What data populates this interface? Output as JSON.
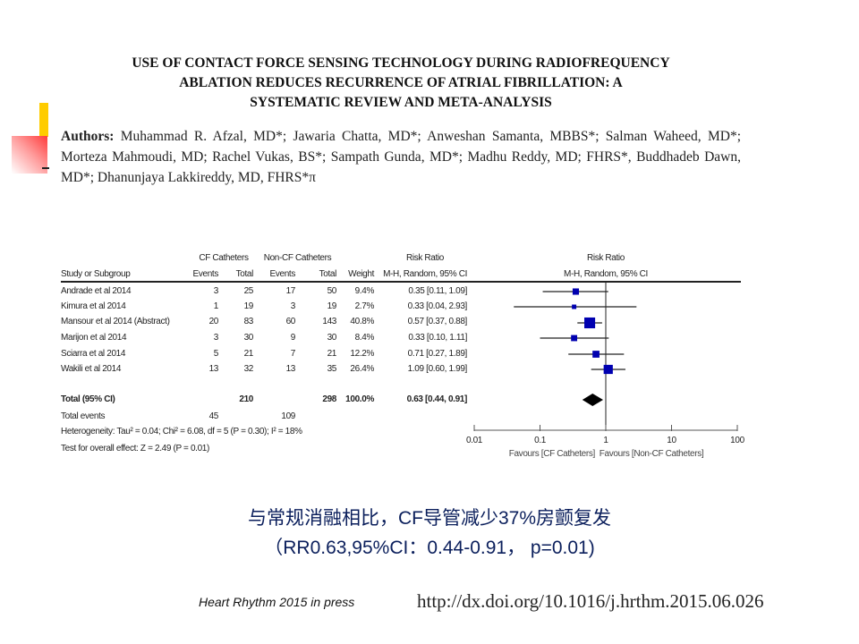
{
  "title": [
    "USE OF CONTACT FORCE SENSING TECHNOLOGY DURING RADIOFREQUENCY",
    "ABLATION REDUCES RECURRENCE OF ATRIAL FIBRILLATION: A",
    "SYSTEMATIC REVIEW AND META-ANALYSIS"
  ],
  "authors_label": "Authors:",
  "authors": "Muhammad R. Afzal, MD*; Jawaria Chatta, MD*; Anweshan Samanta, MBBS*; Salman Waheed, MD*; Morteza Mahmoudi, MD; Rachel Vukas, BS*; Sampath Gunda, MD*; Madhu Reddy, MD; FHRS*, Buddhadeb Dawn, MD*; Dhanunjaya Lakkireddy, MD, FHRS*π",
  "colors": {
    "accent_yellow": "#ffcc00",
    "accent_red": "#ff3b3b",
    "marker": "#0000b0",
    "summary_text": "#0b1f5c"
  },
  "chart_data": {
    "type": "forest",
    "headers": {
      "group1": "CF Catheters",
      "group2": "Non-CF Catheters",
      "rr_top": "Risk Ratio",
      "study": "Study or Subgroup",
      "events": "Events",
      "total": "Total",
      "weight": "Weight",
      "rr_method": "M-H, Random, 95% CI",
      "plot_top": "Risk Ratio",
      "plot_method": "M-H, Random, 95% CI"
    },
    "studies": [
      {
        "name": "Andrade et al 2014",
        "cf_events": "3",
        "cf_total": "25",
        "ncf_events": "17",
        "ncf_total": "50",
        "weight": "9.4%",
        "rr_text": "0.35 [0.11, 1.09]",
        "rr": 0.35,
        "lo": 0.11,
        "hi": 1.09,
        "w": 9.4
      },
      {
        "name": "Kimura et al 2014",
        "cf_events": "1",
        "cf_total": "19",
        "ncf_events": "3",
        "ncf_total": "19",
        "weight": "2.7%",
        "rr_text": "0.33 [0.04, 2.93]",
        "rr": 0.33,
        "lo": 0.04,
        "hi": 2.93,
        "w": 2.7
      },
      {
        "name": "Mansour et al 2014 (Abstract)",
        "cf_events": "20",
        "cf_total": "83",
        "ncf_events": "60",
        "ncf_total": "143",
        "weight": "40.8%",
        "rr_text": "0.57 [0.37, 0.88]",
        "rr": 0.57,
        "lo": 0.37,
        "hi": 0.88,
        "w": 40.8
      },
      {
        "name": "Marijon et al 2014",
        "cf_events": "3",
        "cf_total": "30",
        "ncf_events": "9",
        "ncf_total": "30",
        "weight": "8.4%",
        "rr_text": "0.33 [0.10, 1.11]",
        "rr": 0.33,
        "lo": 0.1,
        "hi": 1.11,
        "w": 8.4
      },
      {
        "name": "Sciarra et al 2014",
        "cf_events": "5",
        "cf_total": "21",
        "ncf_events": "7",
        "ncf_total": "21",
        "weight": "12.2%",
        "rr_text": "0.71 [0.27, 1.89]",
        "rr": 0.71,
        "lo": 0.27,
        "hi": 1.89,
        "w": 12.2
      },
      {
        "name": "Wakili et al 2014",
        "cf_events": "13",
        "cf_total": "32",
        "ncf_events": "13",
        "ncf_total": "35",
        "weight": "26.4%",
        "rr_text": "1.09 [0.60, 1.99]",
        "rr": 1.09,
        "lo": 0.6,
        "hi": 1.99,
        "w": 26.4
      }
    ],
    "total": {
      "label": "Total (95% CI)",
      "cf_total": "210",
      "ncf_total": "298",
      "weight": "100.0%",
      "rr_text": "0.63 [0.44, 0.91]",
      "rr": 0.63,
      "lo": 0.44,
      "hi": 0.91
    },
    "total_events": {
      "label": "Total events",
      "cf": "45",
      "ncf": "109"
    },
    "heterogeneity": "Heterogeneity: Tau² = 0.04; Chi² = 6.08, df = 5 (P = 0.30); I² = 18%",
    "overall_effect": "Test for overall effect: Z = 2.49 (P = 0.01)",
    "x_axis": {
      "scale": "log",
      "range": [
        0.01,
        100
      ],
      "ticks": [
        0.01,
        0.1,
        1,
        10,
        100
      ],
      "tick_labels": [
        "0.01",
        "0.1",
        "1",
        "10",
        "100"
      ],
      "reference": 1
    },
    "favours_left": "Favours [CF Catheters]",
    "favours_right": "Favours [Non-CF Catheters]"
  },
  "summary_line1": "与常规消融相比，CF导管减少37%房颤复发",
  "summary_line2": "（RR0.63,95%CI：0.44-0.91， p=0.01)",
  "citation": "Heart Rhythm 2015 in press",
  "doi": "http://dx.doi.org/10.1016/j.hrthm.2015.06.026"
}
